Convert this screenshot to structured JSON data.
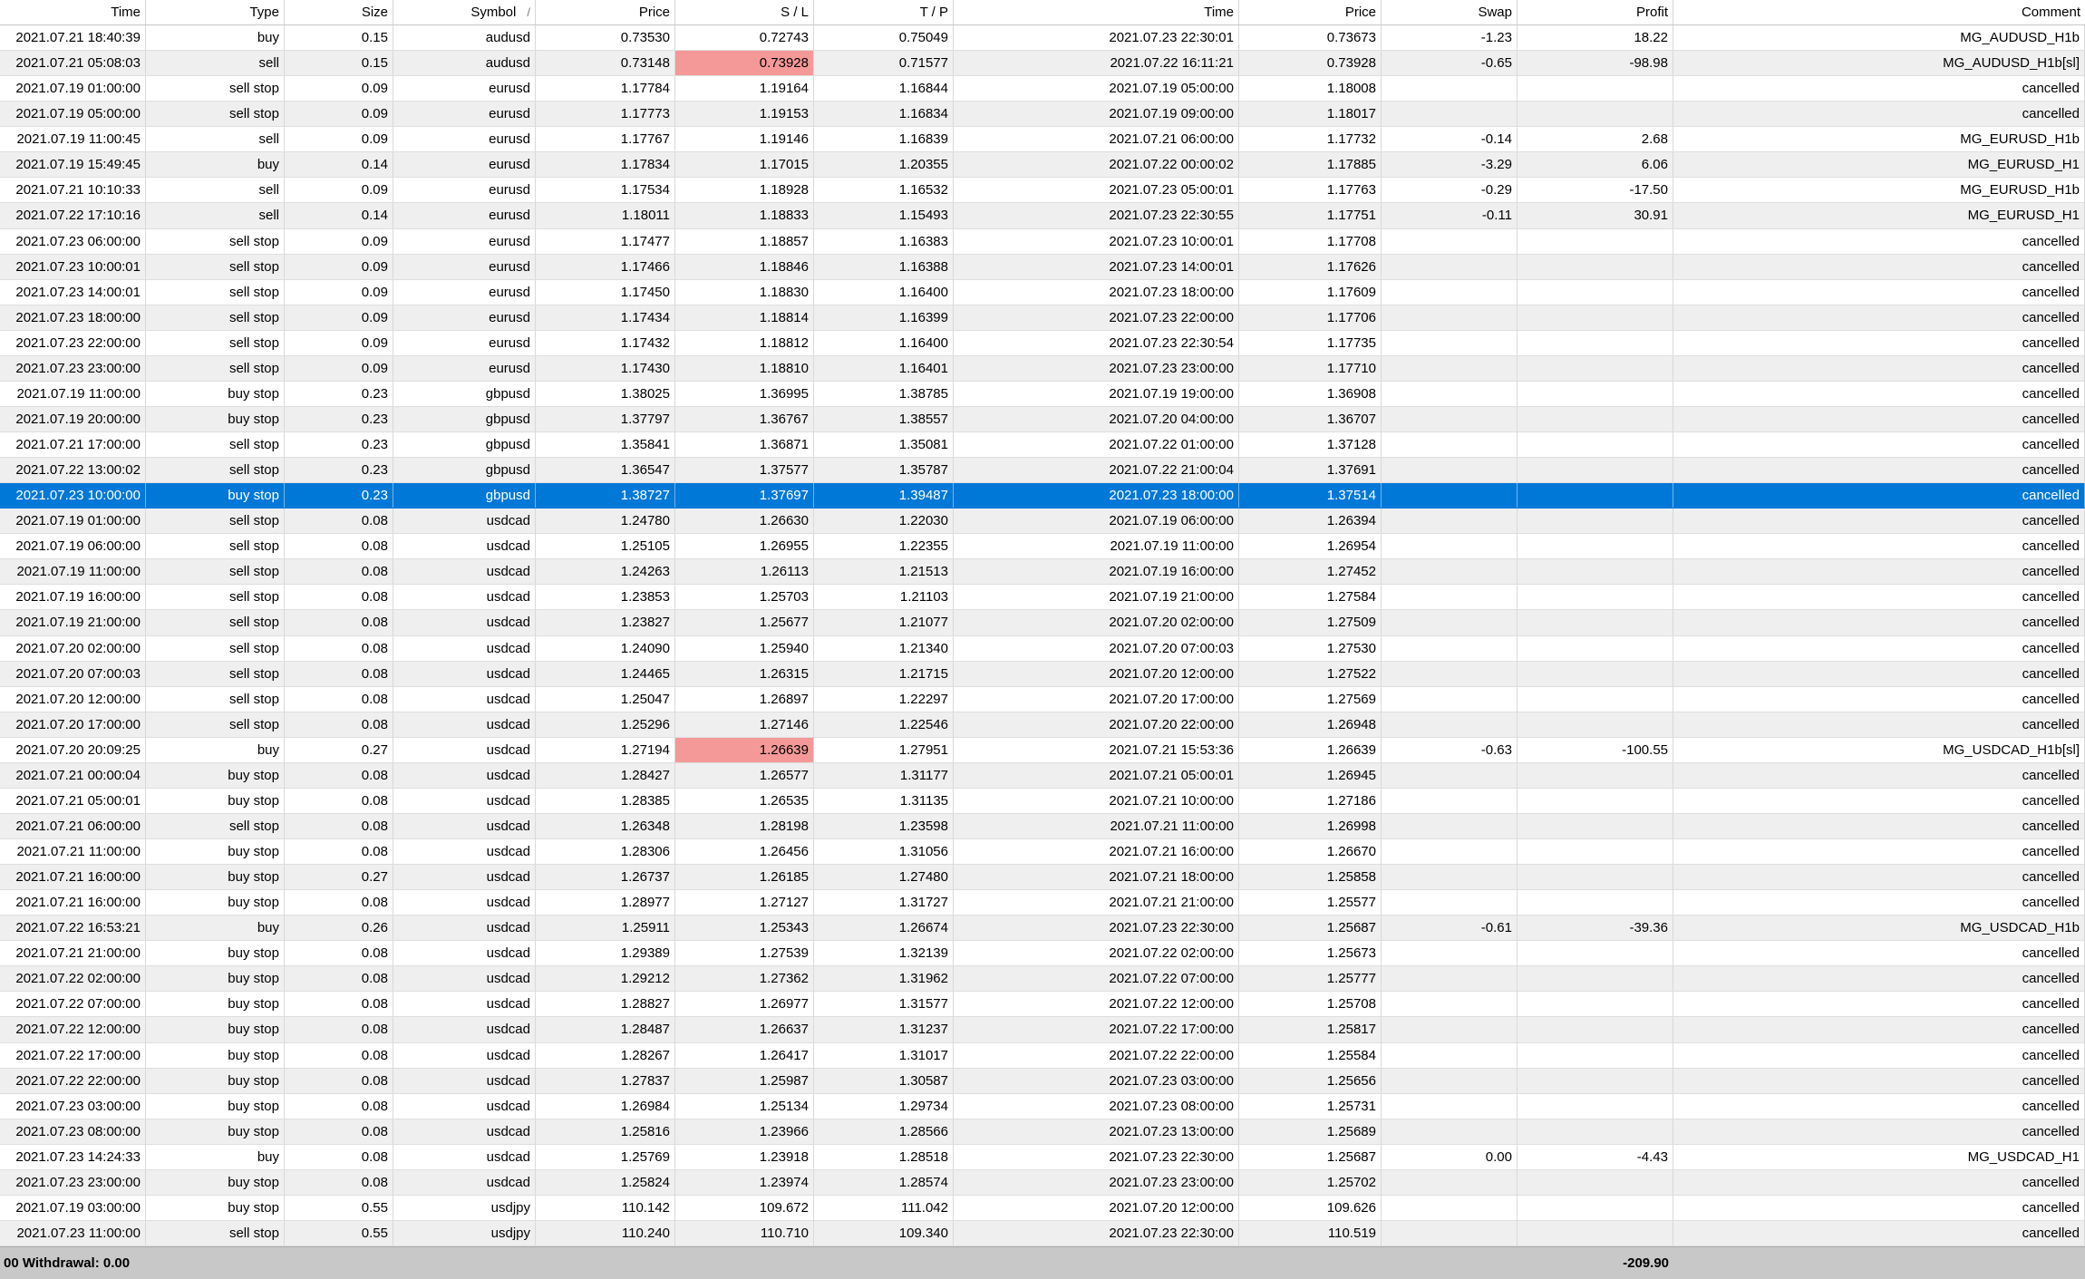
{
  "table": {
    "columns": [
      {
        "key": "time",
        "label": "Time"
      },
      {
        "key": "type",
        "label": "Type"
      },
      {
        "key": "size",
        "label": "Size"
      },
      {
        "key": "symbol",
        "label": "Symbol",
        "sort_icon": "/"
      },
      {
        "key": "price",
        "label": "Price"
      },
      {
        "key": "sl",
        "label": "S / L"
      },
      {
        "key": "tp",
        "label": "T / P"
      },
      {
        "key": "close_time",
        "label": "Time"
      },
      {
        "key": "close_price",
        "label": "Price"
      },
      {
        "key": "swap",
        "label": "Swap"
      },
      {
        "key": "profit",
        "label": "Profit"
      },
      {
        "key": "comment",
        "label": "Comment"
      }
    ],
    "rows": [
      {
        "time": "2021.07.21 18:40:39",
        "type": "buy",
        "size": "0.15",
        "symbol": "audusd",
        "price": "0.73530",
        "sl": "0.72743",
        "tp": "0.75049",
        "close_time": "2021.07.23 22:30:01",
        "close_price": "0.73673",
        "swap": "-1.23",
        "profit": "18.22",
        "comment": "MG_AUDUSD_H1b"
      },
      {
        "time": "2021.07.21 05:08:03",
        "type": "sell",
        "size": "0.15",
        "symbol": "audusd",
        "price": "0.73148",
        "sl": "0.73928",
        "tp": "0.71577",
        "close_time": "2021.07.22 16:11:21",
        "close_price": "0.73928",
        "swap": "-0.65",
        "profit": "-98.98",
        "comment": "MG_AUDUSD_H1b[sl]",
        "sl_hit": true
      },
      {
        "time": "2021.07.19 01:00:00",
        "type": "sell stop",
        "size": "0.09",
        "symbol": "eurusd",
        "price": "1.17784",
        "sl": "1.19164",
        "tp": "1.16844",
        "close_time": "2021.07.19 05:00:00",
        "close_price": "1.18008",
        "swap": "",
        "profit": "",
        "comment": "cancelled"
      },
      {
        "time": "2021.07.19 05:00:00",
        "type": "sell stop",
        "size": "0.09",
        "symbol": "eurusd",
        "price": "1.17773",
        "sl": "1.19153",
        "tp": "1.16834",
        "close_time": "2021.07.19 09:00:00",
        "close_price": "1.18017",
        "swap": "",
        "profit": "",
        "comment": "cancelled"
      },
      {
        "time": "2021.07.19 11:00:45",
        "type": "sell",
        "size": "0.09",
        "symbol": "eurusd",
        "price": "1.17767",
        "sl": "1.19146",
        "tp": "1.16839",
        "close_time": "2021.07.21 06:00:00",
        "close_price": "1.17732",
        "swap": "-0.14",
        "profit": "2.68",
        "comment": "MG_EURUSD_H1b"
      },
      {
        "time": "2021.07.19 15:49:45",
        "type": "buy",
        "size": "0.14",
        "symbol": "eurusd",
        "price": "1.17834",
        "sl": "1.17015",
        "tp": "1.20355",
        "close_time": "2021.07.22 00:00:02",
        "close_price": "1.17885",
        "swap": "-3.29",
        "profit": "6.06",
        "comment": "MG_EURUSD_H1"
      },
      {
        "time": "2021.07.21 10:10:33",
        "type": "sell",
        "size": "0.09",
        "symbol": "eurusd",
        "price": "1.17534",
        "sl": "1.18928",
        "tp": "1.16532",
        "close_time": "2021.07.23 05:00:01",
        "close_price": "1.17763",
        "swap": "-0.29",
        "profit": "-17.50",
        "comment": "MG_EURUSD_H1b"
      },
      {
        "time": "2021.07.22 17:10:16",
        "type": "sell",
        "size": "0.14",
        "symbol": "eurusd",
        "price": "1.18011",
        "sl": "1.18833",
        "tp": "1.15493",
        "close_time": "2021.07.23 22:30:55",
        "close_price": "1.17751",
        "swap": "-0.11",
        "profit": "30.91",
        "comment": "MG_EURUSD_H1"
      },
      {
        "time": "2021.07.23 06:00:00",
        "type": "sell stop",
        "size": "0.09",
        "symbol": "eurusd",
        "price": "1.17477",
        "sl": "1.18857",
        "tp": "1.16383",
        "close_time": "2021.07.23 10:00:01",
        "close_price": "1.17708",
        "swap": "",
        "profit": "",
        "comment": "cancelled"
      },
      {
        "time": "2021.07.23 10:00:01",
        "type": "sell stop",
        "size": "0.09",
        "symbol": "eurusd",
        "price": "1.17466",
        "sl": "1.18846",
        "tp": "1.16388",
        "close_time": "2021.07.23 14:00:01",
        "close_price": "1.17626",
        "swap": "",
        "profit": "",
        "comment": "cancelled"
      },
      {
        "time": "2021.07.23 14:00:01",
        "type": "sell stop",
        "size": "0.09",
        "symbol": "eurusd",
        "price": "1.17450",
        "sl": "1.18830",
        "tp": "1.16400",
        "close_time": "2021.07.23 18:00:00",
        "close_price": "1.17609",
        "swap": "",
        "profit": "",
        "comment": "cancelled"
      },
      {
        "time": "2021.07.23 18:00:00",
        "type": "sell stop",
        "size": "0.09",
        "symbol": "eurusd",
        "price": "1.17434",
        "sl": "1.18814",
        "tp": "1.16399",
        "close_time": "2021.07.23 22:00:00",
        "close_price": "1.17706",
        "swap": "",
        "profit": "",
        "comment": "cancelled"
      },
      {
        "time": "2021.07.23 22:00:00",
        "type": "sell stop",
        "size": "0.09",
        "symbol": "eurusd",
        "price": "1.17432",
        "sl": "1.18812",
        "tp": "1.16400",
        "close_time": "2021.07.23 22:30:54",
        "close_price": "1.17735",
        "swap": "",
        "profit": "",
        "comment": "cancelled"
      },
      {
        "time": "2021.07.23 23:00:00",
        "type": "sell stop",
        "size": "0.09",
        "symbol": "eurusd",
        "price": "1.17430",
        "sl": "1.18810",
        "tp": "1.16401",
        "close_time": "2021.07.23 23:00:00",
        "close_price": "1.17710",
        "swap": "",
        "profit": "",
        "comment": "cancelled"
      },
      {
        "time": "2021.07.19 11:00:00",
        "type": "buy stop",
        "size": "0.23",
        "symbol": "gbpusd",
        "price": "1.38025",
        "sl": "1.36995",
        "tp": "1.38785",
        "close_time": "2021.07.19 19:00:00",
        "close_price": "1.36908",
        "swap": "",
        "profit": "",
        "comment": "cancelled"
      },
      {
        "time": "2021.07.19 20:00:00",
        "type": "buy stop",
        "size": "0.23",
        "symbol": "gbpusd",
        "price": "1.37797",
        "sl": "1.36767",
        "tp": "1.38557",
        "close_time": "2021.07.20 04:00:00",
        "close_price": "1.36707",
        "swap": "",
        "profit": "",
        "comment": "cancelled"
      },
      {
        "time": "2021.07.21 17:00:00",
        "type": "sell stop",
        "size": "0.23",
        "symbol": "gbpusd",
        "price": "1.35841",
        "sl": "1.36871",
        "tp": "1.35081",
        "close_time": "2021.07.22 01:00:00",
        "close_price": "1.37128",
        "swap": "",
        "profit": "",
        "comment": "cancelled"
      },
      {
        "time": "2021.07.22 13:00:02",
        "type": "sell stop",
        "size": "0.23",
        "symbol": "gbpusd",
        "price": "1.36547",
        "sl": "1.37577",
        "tp": "1.35787",
        "close_time": "2021.07.22 21:00:04",
        "close_price": "1.37691",
        "swap": "",
        "profit": "",
        "comment": "cancelled"
      },
      {
        "time": "2021.07.23 10:00:00",
        "type": "buy stop",
        "size": "0.23",
        "symbol": "gbpusd",
        "price": "1.38727",
        "sl": "1.37697",
        "tp": "1.39487",
        "close_time": "2021.07.23 18:00:00",
        "close_price": "1.37514",
        "swap": "",
        "profit": "",
        "comment": "cancelled",
        "selected": true
      },
      {
        "time": "2021.07.19 01:00:00",
        "type": "sell stop",
        "size": "0.08",
        "symbol": "usdcad",
        "price": "1.24780",
        "sl": "1.26630",
        "tp": "1.22030",
        "close_time": "2021.07.19 06:00:00",
        "close_price": "1.26394",
        "swap": "",
        "profit": "",
        "comment": "cancelled"
      },
      {
        "time": "2021.07.19 06:00:00",
        "type": "sell stop",
        "size": "0.08",
        "symbol": "usdcad",
        "price": "1.25105",
        "sl": "1.26955",
        "tp": "1.22355",
        "close_time": "2021.07.19 11:00:00",
        "close_price": "1.26954",
        "swap": "",
        "profit": "",
        "comment": "cancelled"
      },
      {
        "time": "2021.07.19 11:00:00",
        "type": "sell stop",
        "size": "0.08",
        "symbol": "usdcad",
        "price": "1.24263",
        "sl": "1.26113",
        "tp": "1.21513",
        "close_time": "2021.07.19 16:00:00",
        "close_price": "1.27452",
        "swap": "",
        "profit": "",
        "comment": "cancelled"
      },
      {
        "time": "2021.07.19 16:00:00",
        "type": "sell stop",
        "size": "0.08",
        "symbol": "usdcad",
        "price": "1.23853",
        "sl": "1.25703",
        "tp": "1.21103",
        "close_time": "2021.07.19 21:00:00",
        "close_price": "1.27584",
        "swap": "",
        "profit": "",
        "comment": "cancelled"
      },
      {
        "time": "2021.07.19 21:00:00",
        "type": "sell stop",
        "size": "0.08",
        "symbol": "usdcad",
        "price": "1.23827",
        "sl": "1.25677",
        "tp": "1.21077",
        "close_time": "2021.07.20 02:00:00",
        "close_price": "1.27509",
        "swap": "",
        "profit": "",
        "comment": "cancelled"
      },
      {
        "time": "2021.07.20 02:00:00",
        "type": "sell stop",
        "size": "0.08",
        "symbol": "usdcad",
        "price": "1.24090",
        "sl": "1.25940",
        "tp": "1.21340",
        "close_time": "2021.07.20 07:00:03",
        "close_price": "1.27530",
        "swap": "",
        "profit": "",
        "comment": "cancelled"
      },
      {
        "time": "2021.07.20 07:00:03",
        "type": "sell stop",
        "size": "0.08",
        "symbol": "usdcad",
        "price": "1.24465",
        "sl": "1.26315",
        "tp": "1.21715",
        "close_time": "2021.07.20 12:00:00",
        "close_price": "1.27522",
        "swap": "",
        "profit": "",
        "comment": "cancelled"
      },
      {
        "time": "2021.07.20 12:00:00",
        "type": "sell stop",
        "size": "0.08",
        "symbol": "usdcad",
        "price": "1.25047",
        "sl": "1.26897",
        "tp": "1.22297",
        "close_time": "2021.07.20 17:00:00",
        "close_price": "1.27569",
        "swap": "",
        "profit": "",
        "comment": "cancelled"
      },
      {
        "time": "2021.07.20 17:00:00",
        "type": "sell stop",
        "size": "0.08",
        "symbol": "usdcad",
        "price": "1.25296",
        "sl": "1.27146",
        "tp": "1.22546",
        "close_time": "2021.07.20 22:00:00",
        "close_price": "1.26948",
        "swap": "",
        "profit": "",
        "comment": "cancelled"
      },
      {
        "time": "2021.07.20 20:09:25",
        "type": "buy",
        "size": "0.27",
        "symbol": "usdcad",
        "price": "1.27194",
        "sl": "1.26639",
        "tp": "1.27951",
        "close_time": "2021.07.21 15:53:36",
        "close_price": "1.26639",
        "swap": "-0.63",
        "profit": "-100.55",
        "comment": "MG_USDCAD_H1b[sl]",
        "sl_hit": true
      },
      {
        "time": "2021.07.21 00:00:04",
        "type": "buy stop",
        "size": "0.08",
        "symbol": "usdcad",
        "price": "1.28427",
        "sl": "1.26577",
        "tp": "1.31177",
        "close_time": "2021.07.21 05:00:01",
        "close_price": "1.26945",
        "swap": "",
        "profit": "",
        "comment": "cancelled"
      },
      {
        "time": "2021.07.21 05:00:01",
        "type": "buy stop",
        "size": "0.08",
        "symbol": "usdcad",
        "price": "1.28385",
        "sl": "1.26535",
        "tp": "1.31135",
        "close_time": "2021.07.21 10:00:00",
        "close_price": "1.27186",
        "swap": "",
        "profit": "",
        "comment": "cancelled"
      },
      {
        "time": "2021.07.21 06:00:00",
        "type": "sell stop",
        "size": "0.08",
        "symbol": "usdcad",
        "price": "1.26348",
        "sl": "1.28198",
        "tp": "1.23598",
        "close_time": "2021.07.21 11:00:00",
        "close_price": "1.26998",
        "swap": "",
        "profit": "",
        "comment": "cancelled"
      },
      {
        "time": "2021.07.21 11:00:00",
        "type": "buy stop",
        "size": "0.08",
        "symbol": "usdcad",
        "price": "1.28306",
        "sl": "1.26456",
        "tp": "1.31056",
        "close_time": "2021.07.21 16:00:00",
        "close_price": "1.26670",
        "swap": "",
        "profit": "",
        "comment": "cancelled"
      },
      {
        "time": "2021.07.21 16:00:00",
        "type": "buy stop",
        "size": "0.27",
        "symbol": "usdcad",
        "price": "1.26737",
        "sl": "1.26185",
        "tp": "1.27480",
        "close_time": "2021.07.21 18:00:00",
        "close_price": "1.25858",
        "swap": "",
        "profit": "",
        "comment": "cancelled"
      },
      {
        "time": "2021.07.21 16:00:00",
        "type": "buy stop",
        "size": "0.08",
        "symbol": "usdcad",
        "price": "1.28977",
        "sl": "1.27127",
        "tp": "1.31727",
        "close_time": "2021.07.21 21:00:00",
        "close_price": "1.25577",
        "swap": "",
        "profit": "",
        "comment": "cancelled"
      },
      {
        "time": "2021.07.22 16:53:21",
        "type": "buy",
        "size": "0.26",
        "symbol": "usdcad",
        "price": "1.25911",
        "sl": "1.25343",
        "tp": "1.26674",
        "close_time": "2021.07.23 22:30:00",
        "close_price": "1.25687",
        "swap": "-0.61",
        "profit": "-39.36",
        "comment": "MG_USDCAD_H1b"
      },
      {
        "time": "2021.07.21 21:00:00",
        "type": "buy stop",
        "size": "0.08",
        "symbol": "usdcad",
        "price": "1.29389",
        "sl": "1.27539",
        "tp": "1.32139",
        "close_time": "2021.07.22 02:00:00",
        "close_price": "1.25673",
        "swap": "",
        "profit": "",
        "comment": "cancelled"
      },
      {
        "time": "2021.07.22 02:00:00",
        "type": "buy stop",
        "size": "0.08",
        "symbol": "usdcad",
        "price": "1.29212",
        "sl": "1.27362",
        "tp": "1.31962",
        "close_time": "2021.07.22 07:00:00",
        "close_price": "1.25777",
        "swap": "",
        "profit": "",
        "comment": "cancelled"
      },
      {
        "time": "2021.07.22 07:00:00",
        "type": "buy stop",
        "size": "0.08",
        "symbol": "usdcad",
        "price": "1.28827",
        "sl": "1.26977",
        "tp": "1.31577",
        "close_time": "2021.07.22 12:00:00",
        "close_price": "1.25708",
        "swap": "",
        "profit": "",
        "comment": "cancelled"
      },
      {
        "time": "2021.07.22 12:00:00",
        "type": "buy stop",
        "size": "0.08",
        "symbol": "usdcad",
        "price": "1.28487",
        "sl": "1.26637",
        "tp": "1.31237",
        "close_time": "2021.07.22 17:00:00",
        "close_price": "1.25817",
        "swap": "",
        "profit": "",
        "comment": "cancelled"
      },
      {
        "time": "2021.07.22 17:00:00",
        "type": "buy stop",
        "size": "0.08",
        "symbol": "usdcad",
        "price": "1.28267",
        "sl": "1.26417",
        "tp": "1.31017",
        "close_time": "2021.07.22 22:00:00",
        "close_price": "1.25584",
        "swap": "",
        "profit": "",
        "comment": "cancelled"
      },
      {
        "time": "2021.07.22 22:00:00",
        "type": "buy stop",
        "size": "0.08",
        "symbol": "usdcad",
        "price": "1.27837",
        "sl": "1.25987",
        "tp": "1.30587",
        "close_time": "2021.07.23 03:00:00",
        "close_price": "1.25656",
        "swap": "",
        "profit": "",
        "comment": "cancelled"
      },
      {
        "time": "2021.07.23 03:00:00",
        "type": "buy stop",
        "size": "0.08",
        "symbol": "usdcad",
        "price": "1.26984",
        "sl": "1.25134",
        "tp": "1.29734",
        "close_time": "2021.07.23 08:00:00",
        "close_price": "1.25731",
        "swap": "",
        "profit": "",
        "comment": "cancelled"
      },
      {
        "time": "2021.07.23 08:00:00",
        "type": "buy stop",
        "size": "0.08",
        "symbol": "usdcad",
        "price": "1.25816",
        "sl": "1.23966",
        "tp": "1.28566",
        "close_time": "2021.07.23 13:00:00",
        "close_price": "1.25689",
        "swap": "",
        "profit": "",
        "comment": "cancelled"
      },
      {
        "time": "2021.07.23 14:24:33",
        "type": "buy",
        "size": "0.08",
        "symbol": "usdcad",
        "price": "1.25769",
        "sl": "1.23918",
        "tp": "1.28518",
        "close_time": "2021.07.23 22:30:00",
        "close_price": "1.25687",
        "swap": "0.00",
        "profit": "-4.43",
        "comment": "MG_USDCAD_H1"
      },
      {
        "time": "2021.07.23 23:00:00",
        "type": "buy stop",
        "size": "0.08",
        "symbol": "usdcad",
        "price": "1.25824",
        "sl": "1.23974",
        "tp": "1.28574",
        "close_time": "2021.07.23 23:00:00",
        "close_price": "1.25702",
        "swap": "",
        "profit": "",
        "comment": "cancelled"
      },
      {
        "time": "2021.07.19 03:00:00",
        "type": "buy stop",
        "size": "0.55",
        "symbol": "usdjpy",
        "price": "110.142",
        "sl": "109.672",
        "tp": "111.042",
        "close_time": "2021.07.20 12:00:00",
        "close_price": "109.626",
        "swap": "",
        "profit": "",
        "comment": "cancelled"
      },
      {
        "time": "2021.07.23 11:00:00",
        "type": "sell stop",
        "size": "0.55",
        "symbol": "usdjpy",
        "price": "110.240",
        "sl": "110.710",
        "tp": "109.340",
        "close_time": "2021.07.23 22:30:00",
        "close_price": "110.519",
        "swap": "",
        "profit": "",
        "comment": "cancelled"
      }
    ]
  },
  "footer": {
    "left_text": "00  Withdrawal: 0.00",
    "profit_total": "-209.90"
  },
  "colors": {
    "selection_bg": "#0078d7",
    "sl_hit_bg": "#f59898",
    "row_alt_bg": "#efefef",
    "footer_bg": "#c8c8c8"
  }
}
